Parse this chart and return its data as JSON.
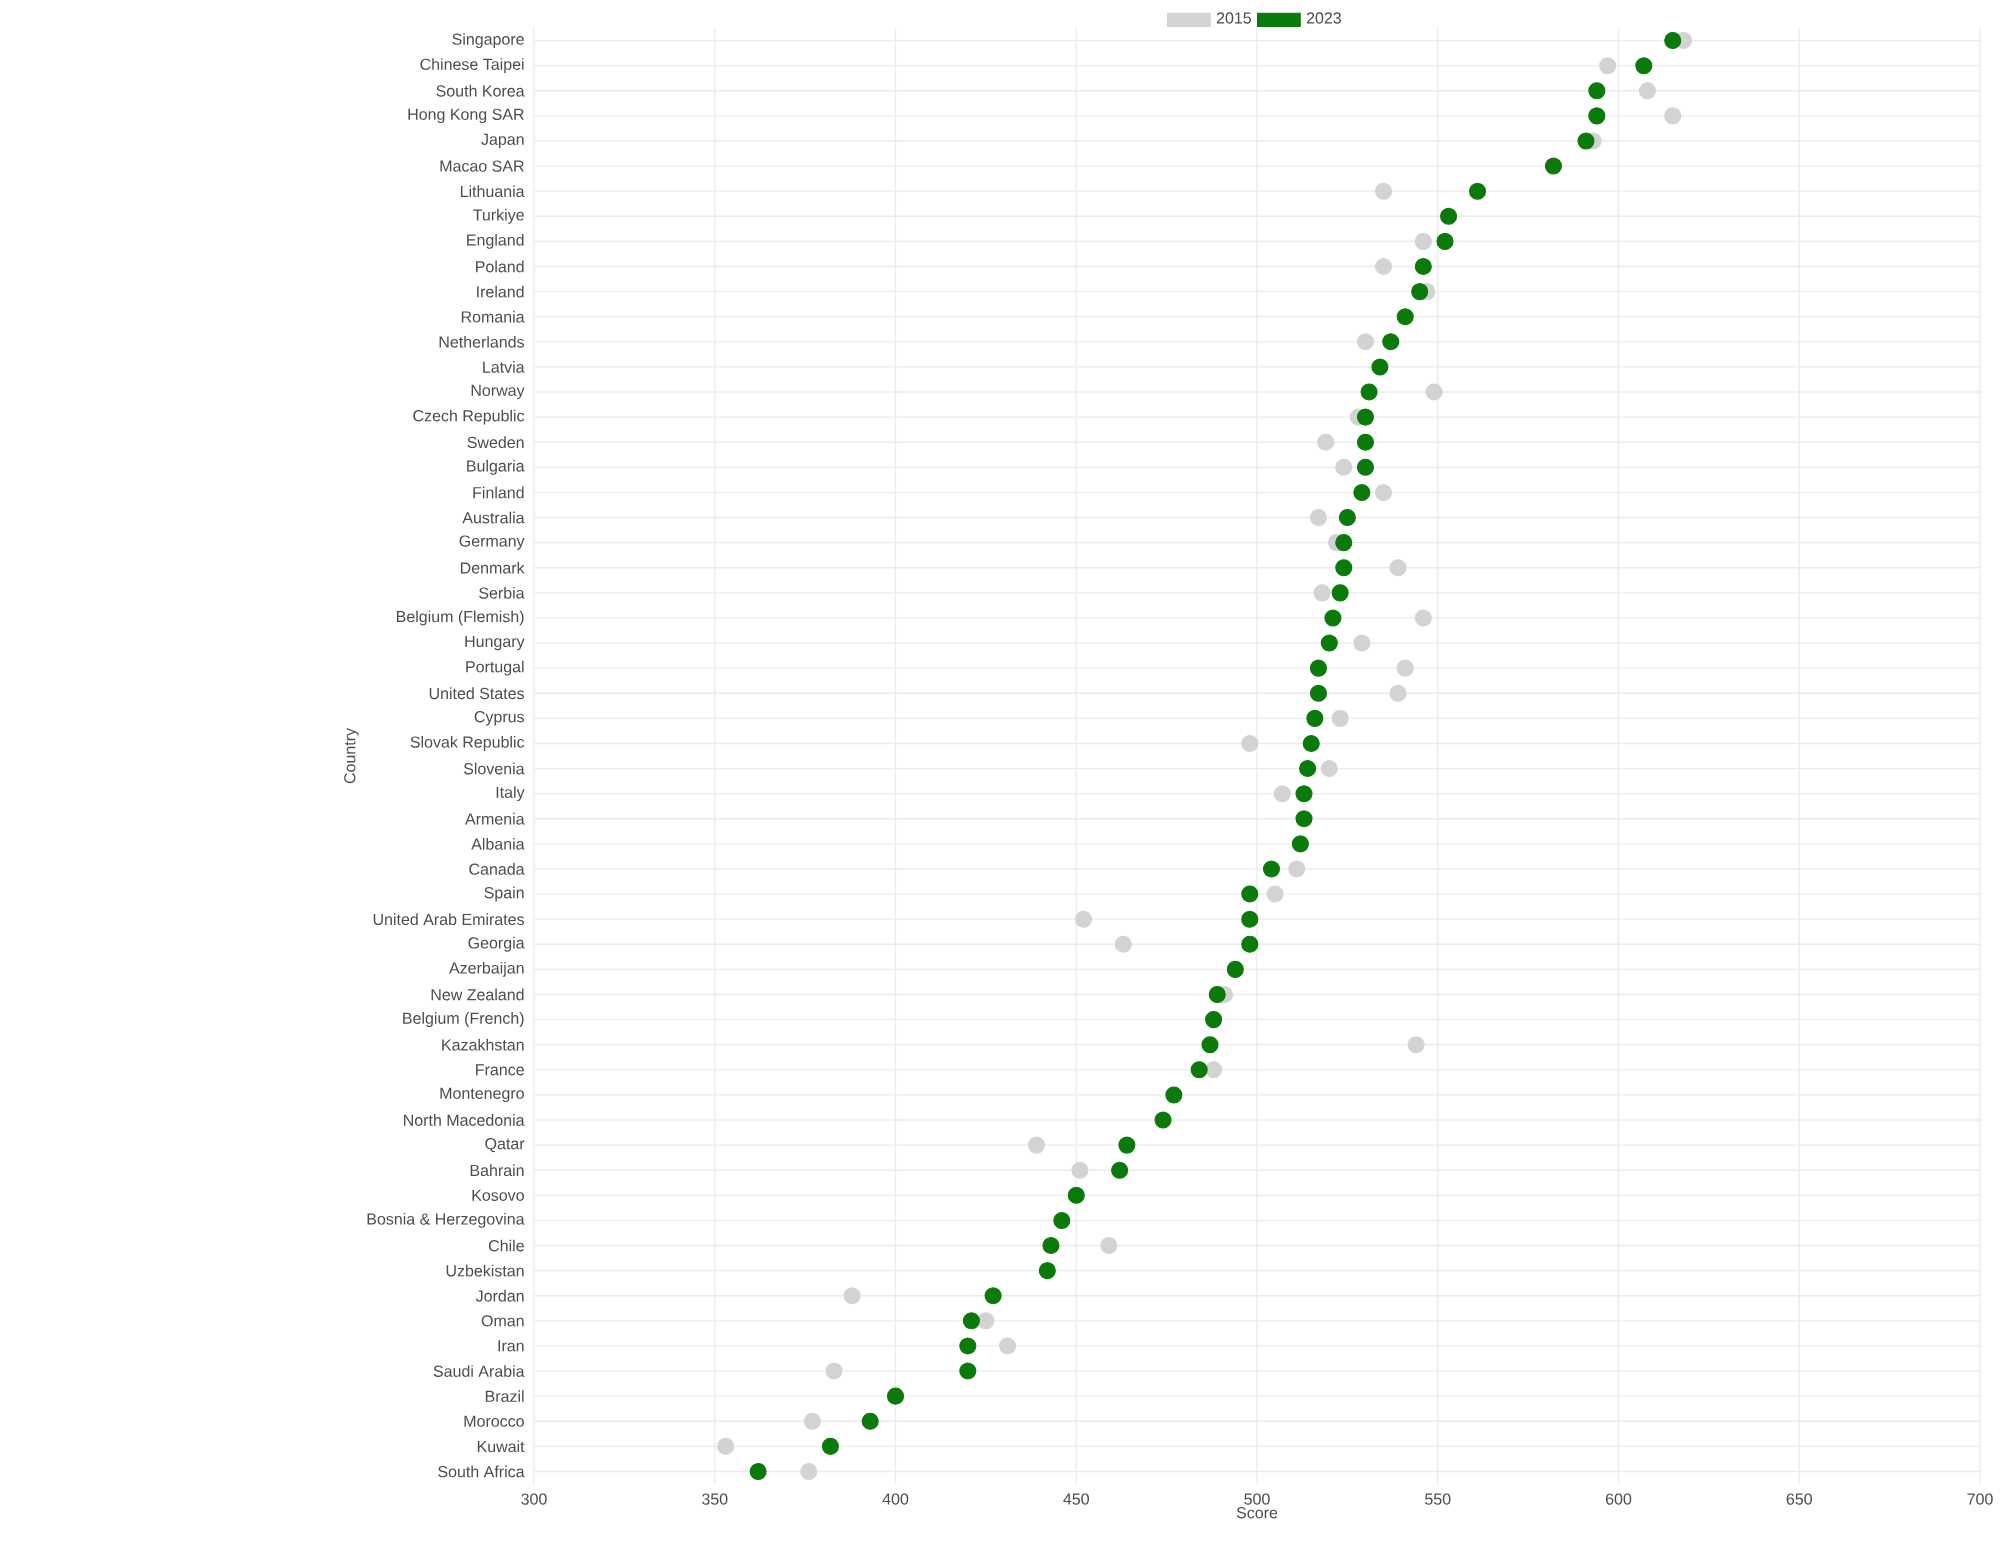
{
  "chart_data": {
    "type": "scatter",
    "orientation": "horizontal",
    "xlabel": "Score",
    "ylabel": "Country",
    "categories": [
      "Singapore",
      "Chinese Taipei",
      "South Korea",
      "Hong Kong SAR",
      "Japan",
      "Macao SAR",
      "Lithuania",
      "Turkiye",
      "England",
      "Poland",
      "Ireland",
      "Romania",
      "Netherlands",
      "Latvia",
      "Norway",
      "Czech Republic",
      "Sweden",
      "Bulgaria",
      "Finland",
      "Australia",
      "Germany",
      "Denmark",
      "Serbia",
      "Belgium (Flemish)",
      "Hungary",
      "Portugal",
      "United States",
      "Cyprus",
      "Slovak Republic",
      "Slovenia",
      "Italy",
      "Armenia",
      "Albania",
      "Canada",
      "Spain",
      "United Arab Emirates",
      "Georgia",
      "Azerbaijan",
      "New Zealand",
      "Belgium (French)",
      "Kazakhstan",
      "France",
      "Montenegro",
      "North Macedonia",
      "Qatar",
      "Bahrain",
      "Kosovo",
      "Bosnia & Herzegovina",
      "Chile",
      "Uzbekistan",
      "Jordan",
      "Oman",
      "Iran",
      "Saudi Arabia",
      "Brazil",
      "Morocco",
      "Kuwait",
      "South Africa"
    ],
    "series": [
      {
        "name": "2015",
        "color": "#d3d3d3",
        "values": [
          618,
          597,
          608,
          615,
          593,
          null,
          535,
          null,
          546,
          535,
          547,
          null,
          530,
          null,
          549,
          528,
          519,
          524,
          535,
          517,
          522,
          539,
          518,
          546,
          529,
          541,
          539,
          523,
          498,
          520,
          507,
          null,
          null,
          511,
          505,
          452,
          463,
          null,
          491,
          null,
          544,
          488,
          null,
          null,
          439,
          451,
          null,
          null,
          459,
          null,
          388,
          425,
          431,
          383,
          null,
          377,
          353,
          376
        ]
      },
      {
        "name": "2023",
        "color": "#0a7a0a",
        "values": [
          615,
          607,
          594,
          594,
          591,
          582,
          561,
          553,
          552,
          546,
          545,
          541,
          537,
          534,
          531,
          530,
          530,
          530,
          529,
          525,
          524,
          524,
          523,
          521,
          520,
          517,
          517,
          516,
          515,
          514,
          513,
          513,
          512,
          504,
          498,
          498,
          498,
          494,
          489,
          488,
          487,
          484,
          477,
          474,
          464,
          462,
          450,
          446,
          443,
          442,
          427,
          421,
          420,
          420,
          400,
          393,
          382,
          362
        ]
      }
    ],
    "xlim": [
      300,
      700
    ],
    "xticks": [
      300,
      350,
      400,
      450,
      500,
      550,
      600,
      650,
      700
    ],
    "grid": true,
    "legend": "top",
    "marker": "circle"
  }
}
